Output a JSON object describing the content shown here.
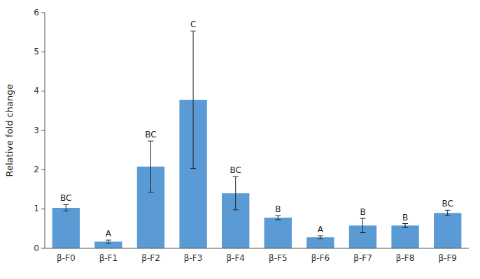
{
  "chart_data": {
    "type": "bar",
    "ylabel": "Relative fold change",
    "categories": [
      "β-F0",
      "β-F1",
      "β-F2",
      "β-F3",
      "β-F4",
      "β-F5",
      "β-F6",
      "β-F7",
      "β-F8",
      "β-F9"
    ],
    "values": [
      1.03,
      0.17,
      2.08,
      3.78,
      1.4,
      0.78,
      0.28,
      0.58,
      0.58,
      0.9
    ],
    "errors": [
      0.08,
      0.04,
      0.65,
      1.75,
      0.42,
      0.05,
      0.04,
      0.18,
      0.05,
      0.07
    ],
    "annotations": [
      "BC",
      "A",
      "BC",
      "C",
      "BC",
      "B",
      "A",
      "B",
      "B",
      "BC"
    ],
    "color": "#5b9bd5",
    "ylim": [
      0,
      6
    ],
    "yticks": [
      0,
      1,
      2,
      3,
      4,
      5,
      6
    ],
    "grid": false
  }
}
